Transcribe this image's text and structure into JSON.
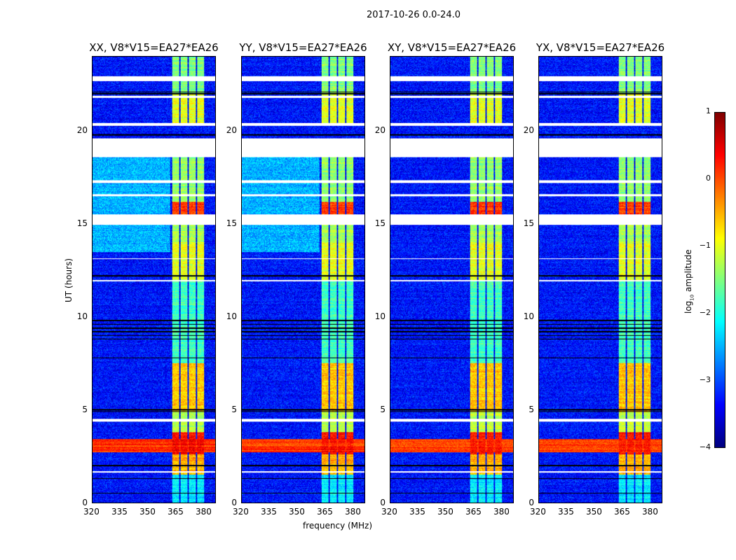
{
  "chart_data": {
    "type": "heatmap",
    "title": "2017-10-26 0.0-24.0",
    "xlabel": "frequency (MHz)",
    "ylabel": "UT (hours)",
    "xlim": [
      320,
      386.4
    ],
    "ylim": [
      0,
      24
    ],
    "xticks": [
      "320",
      "335",
      "350",
      "365",
      "380"
    ],
    "xtick_values": [
      320,
      335,
      350,
      365,
      380
    ],
    "yticks": [
      "0",
      "5",
      "10",
      "15",
      "20"
    ],
    "ytick_values": [
      0,
      5,
      10,
      15,
      20
    ],
    "panels": [
      {
        "title": "XX, V8*V15=EA27*EA26"
      },
      {
        "title": "YY, V8*V15=EA27*EA26"
      },
      {
        "title": "XY, V8*V15=EA27*EA26"
      },
      {
        "title": "YX, V8*V15=EA27*EA26"
      }
    ],
    "colorbar": {
      "label": "log10 amplitude",
      "label_main": "log",
      "label_sub": "10",
      "label_rest": " amplitude",
      "range": [
        -4,
        1
      ],
      "ticks": [
        "1",
        "0",
        "−1",
        "−2",
        "−3",
        "−4"
      ],
      "tick_values": [
        1,
        0,
        -1,
        -2,
        -3,
        -4
      ],
      "colormap": "jet"
    },
    "background_level": -3.3,
    "spectral_windows_mhz": [
      [
        363,
        367
      ],
      [
        367.5,
        371.5
      ],
      [
        372,
        376
      ],
      [
        376.5,
        380.5
      ]
    ],
    "spw_level_by_time": [
      [
        0,
        1.5,
        -2.2
      ],
      [
        1.5,
        2.6,
        -0.5
      ],
      [
        2.6,
        3.8,
        0.3
      ],
      [
        3.8,
        4.9,
        -1.2
      ],
      [
        4.9,
        7.5,
        -0.6
      ],
      [
        7.5,
        12,
        -1.8
      ],
      [
        12,
        14,
        -1.0
      ],
      [
        14,
        15,
        -1.3
      ],
      [
        15.5,
        16.2,
        0.1
      ],
      [
        16.2,
        18.6,
        -1.4
      ],
      [
        20.3,
        22,
        -1.0
      ],
      [
        22,
        24,
        -1.5
      ]
    ],
    "broadband_rfi_hours": [
      2.7,
      3.4
    ],
    "broadband_rfi_level": 0.1,
    "flagged_hours": [
      [
        18.6,
        19.6
      ],
      [
        14.95,
        15.5
      ],
      [
        17.2,
        17.35
      ],
      [
        22.7,
        22.95
      ],
      [
        4.35,
        4.5
      ],
      [
        20.3,
        20.45
      ],
      [
        16.5,
        16.6
      ],
      [
        1.6,
        1.7
      ],
      [
        13.1,
        13.15
      ],
      [
        11.9,
        12.0
      ],
      [
        21.8,
        21.9
      ]
    ],
    "dropout_hours": [
      0.5,
      1.3,
      2.0,
      4.9,
      5.0,
      7.8,
      8.8,
      9.0,
      9.2,
      9.4,
      9.6,
      9.8,
      12.2,
      19.8,
      22.0,
      22.1
    ]
  }
}
